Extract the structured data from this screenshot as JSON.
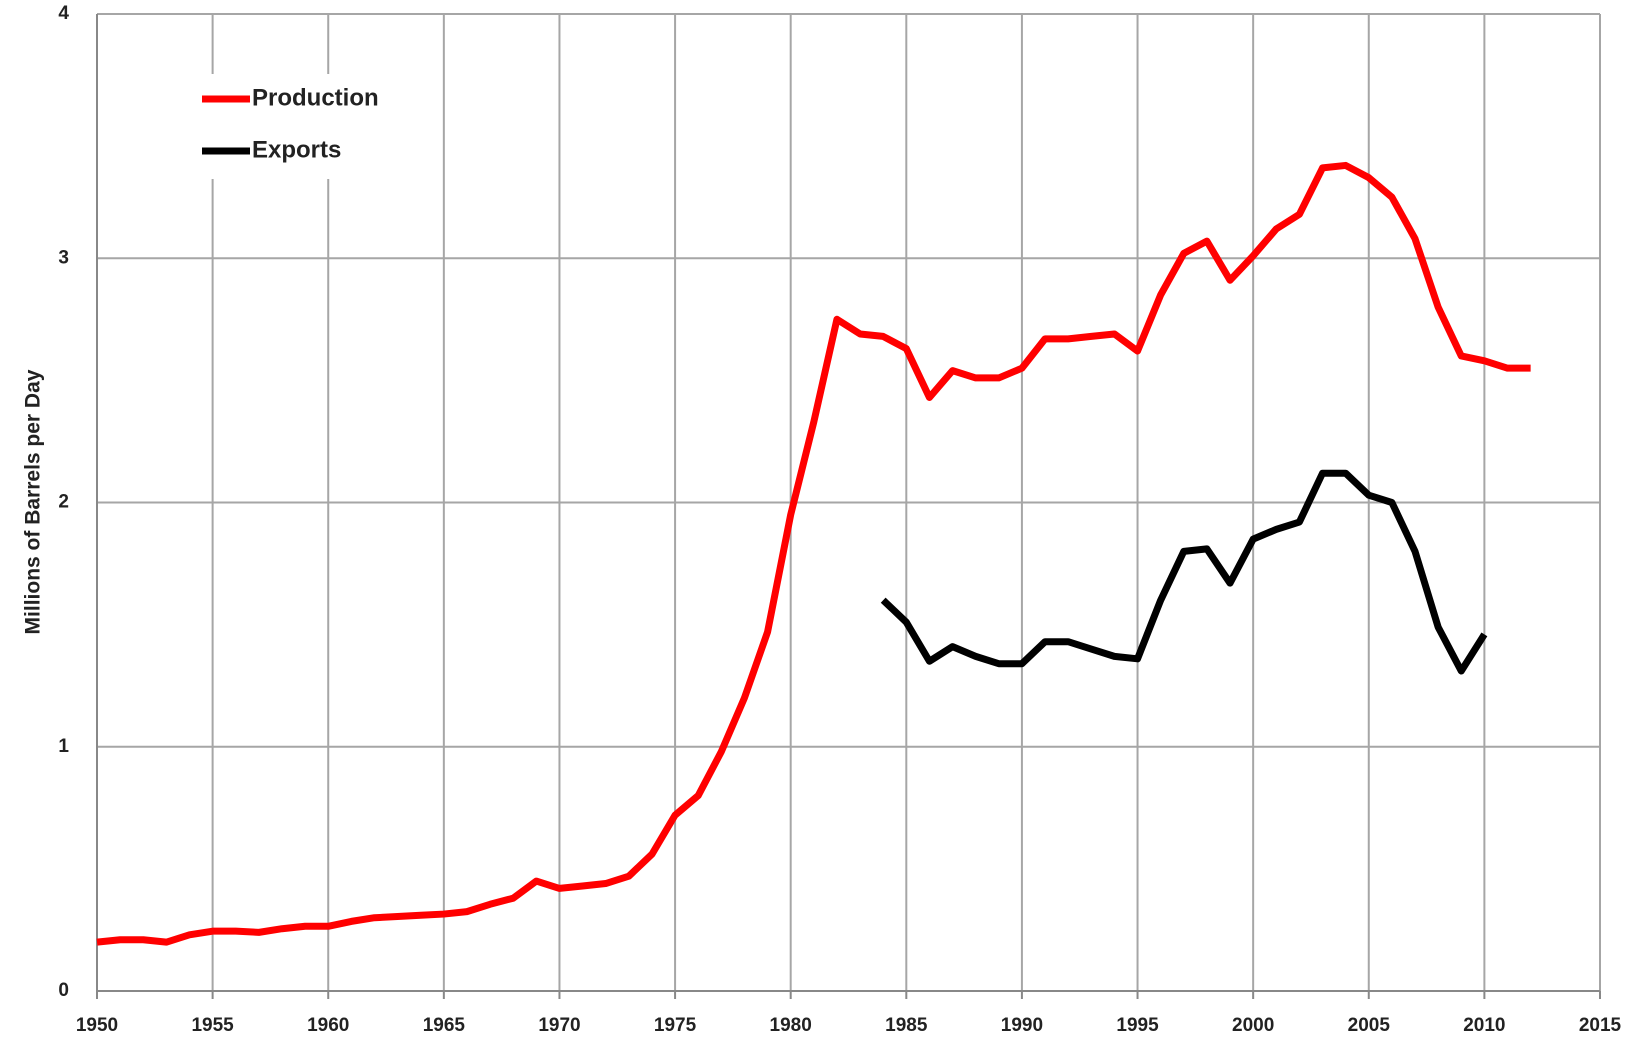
{
  "chart_data": {
    "type": "line",
    "y_label": "Millions of Barrels per Day",
    "x": [
      1950,
      1951,
      1952,
      1953,
      1954,
      1955,
      1956,
      1957,
      1958,
      1959,
      1960,
      1961,
      1962,
      1963,
      1964,
      1965,
      1966,
      1967,
      1968,
      1969,
      1970,
      1971,
      1972,
      1973,
      1974,
      1975,
      1976,
      1977,
      1978,
      1979,
      1980,
      1981,
      1982,
      1983,
      1984,
      1985,
      1986,
      1987,
      1988,
      1989,
      1990,
      1991,
      1992,
      1993,
      1994,
      1995,
      1996,
      1997,
      1998,
      1999,
      2000,
      2001,
      2002,
      2003,
      2004,
      2005,
      2006,
      2007,
      2008,
      2009,
      2010,
      2011,
      2012
    ],
    "series": [
      {
        "name": "Production",
        "color": "#ff0000",
        "values": [
          0.2,
          0.21,
          0.21,
          0.2,
          0.23,
          0.245,
          0.245,
          0.24,
          0.255,
          0.265,
          0.265,
          0.285,
          0.3,
          0.305,
          0.31,
          0.315,
          0.325,
          0.355,
          0.38,
          0.45,
          0.42,
          0.43,
          0.44,
          0.47,
          0.56,
          0.72,
          0.8,
          0.98,
          1.2,
          1.47,
          1.95,
          2.33,
          2.75,
          2.69,
          2.68,
          2.63,
          2.43,
          2.54,
          2.51,
          2.51,
          2.55,
          2.67,
          2.67,
          2.68,
          2.69,
          2.62,
          2.85,
          3.02,
          3.07,
          2.91,
          3.01,
          3.12,
          3.18,
          3.37,
          3.38,
          3.33,
          3.25,
          3.08,
          2.8,
          2.6,
          2.58,
          2.55,
          2.55
        ]
      },
      {
        "name": "Exports",
        "color": "#000000",
        "values": [
          null,
          null,
          null,
          null,
          null,
          null,
          null,
          null,
          null,
          null,
          null,
          null,
          null,
          null,
          null,
          null,
          null,
          null,
          null,
          null,
          null,
          null,
          null,
          null,
          null,
          null,
          null,
          null,
          null,
          null,
          null,
          null,
          null,
          null,
          1.6,
          1.51,
          1.35,
          1.41,
          1.37,
          1.34,
          1.34,
          1.43,
          1.43,
          1.4,
          1.37,
          1.36,
          1.6,
          1.8,
          1.81,
          1.67,
          1.85,
          1.89,
          1.92,
          2.12,
          2.12,
          2.03,
          2.0,
          1.8,
          1.49,
          1.31,
          1.46,
          null,
          null
        ]
      }
    ],
    "xlim": [
      1950,
      2015
    ],
    "xticks": [
      1950,
      1955,
      1960,
      1965,
      1970,
      1975,
      1980,
      1985,
      1990,
      1995,
      2000,
      2005,
      2010,
      2015
    ],
    "ylim": [
      0,
      4
    ],
    "yticks": [
      0,
      1,
      2,
      3,
      4
    ],
    "grid": true,
    "legend": "upper-left"
  }
}
